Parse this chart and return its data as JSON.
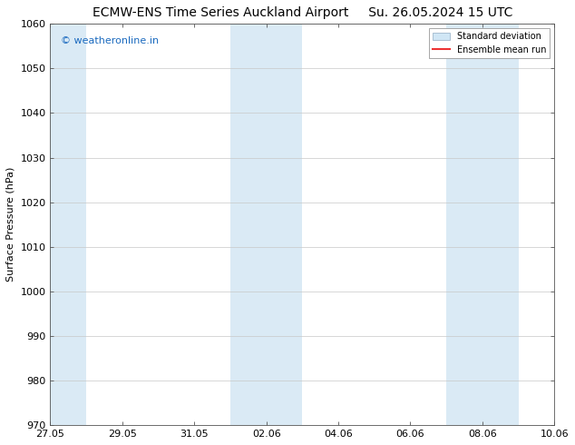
{
  "title": "ECMW-ENS Time Series Auckland Airport     Su. 26.05.2024 15 UTC",
  "title_left": "ECMW-ENS Time Series Auckland Airport",
  "title_right": "Su. 26.05.2024 15 UTC",
  "ylabel": "Surface Pressure (hPa)",
  "ylim": [
    970,
    1060
  ],
  "yticks": [
    970,
    980,
    990,
    1000,
    1010,
    1020,
    1030,
    1040,
    1050,
    1060
  ],
  "xtick_labels": [
    "27.05",
    "29.05",
    "31.05",
    "02.06",
    "04.06",
    "06.06",
    "08.06",
    "10.06"
  ],
  "xmin": 0,
  "xmax": 14,
  "shaded_regions": [
    {
      "xstart": -0.01,
      "xend": 1.0,
      "color": "#daeaf5"
    },
    {
      "xstart": 5.0,
      "xend": 7.0,
      "color": "#daeaf5"
    },
    {
      "xstart": 11.0,
      "xend": 13.0,
      "color": "#daeaf5"
    }
  ],
  "bg_color": "#ffffff",
  "plot_bg_color": "#ffffff",
  "grid_color": "#c8c8c8",
  "watermark_text": "© weatheronline.in",
  "watermark_color": "#1a6abf",
  "legend_std_dev_facecolor": "#d0e6f5",
  "legend_std_dev_edgecolor": "#a0b8cc",
  "legend_mean_color": "#ee3333",
  "title_fontsize": 10,
  "ylabel_fontsize": 8,
  "tick_fontsize": 8,
  "watermark_fontsize": 8
}
